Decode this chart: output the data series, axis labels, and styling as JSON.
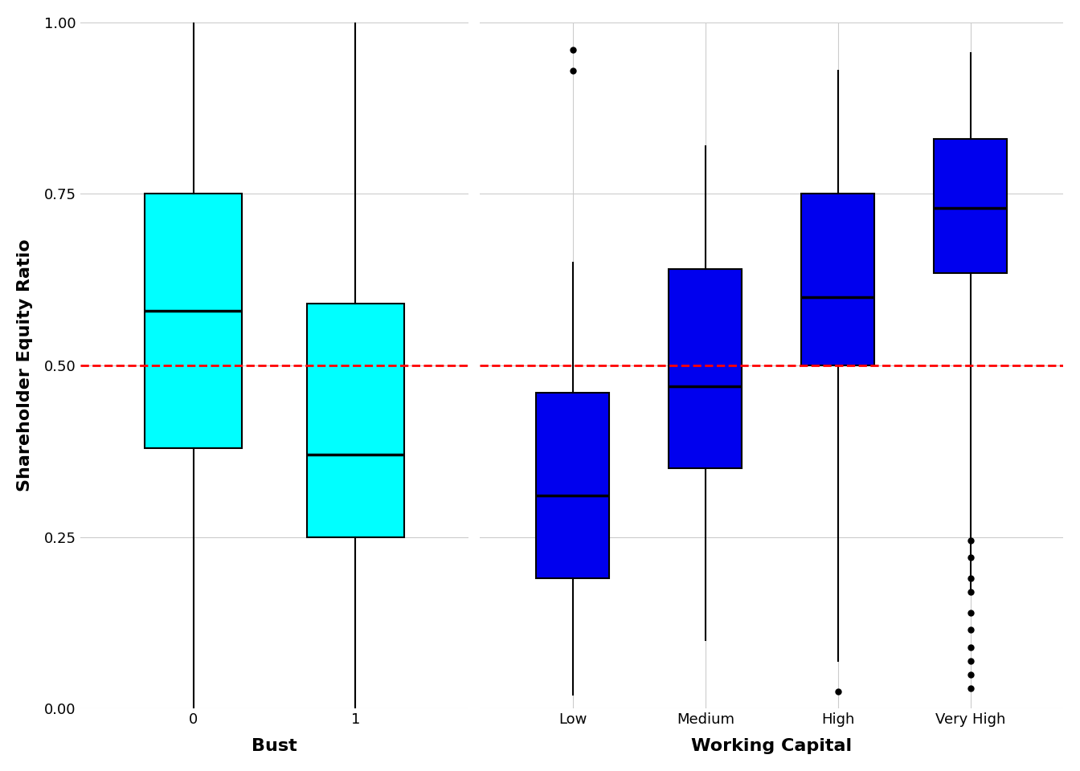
{
  "left_panel": {
    "xlabel": "Bust",
    "ylabel": "Shareholder Equity Ratio",
    "categories": [
      "0",
      "1"
    ],
    "box_color": "#00FFFF",
    "box_data": [
      {
        "whislo": 0.0,
        "q1": 0.38,
        "med": 0.58,
        "q3": 0.75,
        "whishi": 1.0
      },
      {
        "whislo": 0.0,
        "q1": 0.25,
        "med": 0.37,
        "q3": 0.59,
        "whishi": 1.0
      }
    ]
  },
  "right_panel": {
    "xlabel": "Working Capital",
    "ylabel": "",
    "categories": [
      "Low",
      "Medium",
      "High",
      "Very High"
    ],
    "box_color": "#0000EE",
    "box_data": [
      {
        "whislo": 0.02,
        "q1": 0.19,
        "med": 0.31,
        "q3": 0.46,
        "whishi": 0.65
      },
      {
        "whislo": 0.1,
        "q1": 0.35,
        "med": 0.47,
        "q3": 0.64,
        "whishi": 0.82
      },
      {
        "whislo": 0.07,
        "q1": 0.5,
        "med": 0.6,
        "q3": 0.75,
        "whishi": 0.93
      },
      {
        "whislo": 0.17,
        "q1": 0.635,
        "med": 0.73,
        "q3": 0.83,
        "whishi": 0.955
      }
    ],
    "fliers": [
      [
        0.93,
        0.96
      ],
      [],
      [
        0.025
      ],
      [
        0.245,
        0.22,
        0.19,
        0.17,
        0.14,
        0.115,
        0.09,
        0.07,
        0.05,
        0.03
      ]
    ]
  },
  "ref_line_y": 0.5,
  "ref_line_color": "#FF0000",
  "ylim": [
    0.0,
    1.0
  ],
  "yticks": [
    0.0,
    0.25,
    0.5,
    0.75,
    1.0
  ],
  "background_color": "#FFFFFF",
  "grid_color": "#CCCCCC",
  "font_size_label": 16,
  "font_size_tick": 13
}
